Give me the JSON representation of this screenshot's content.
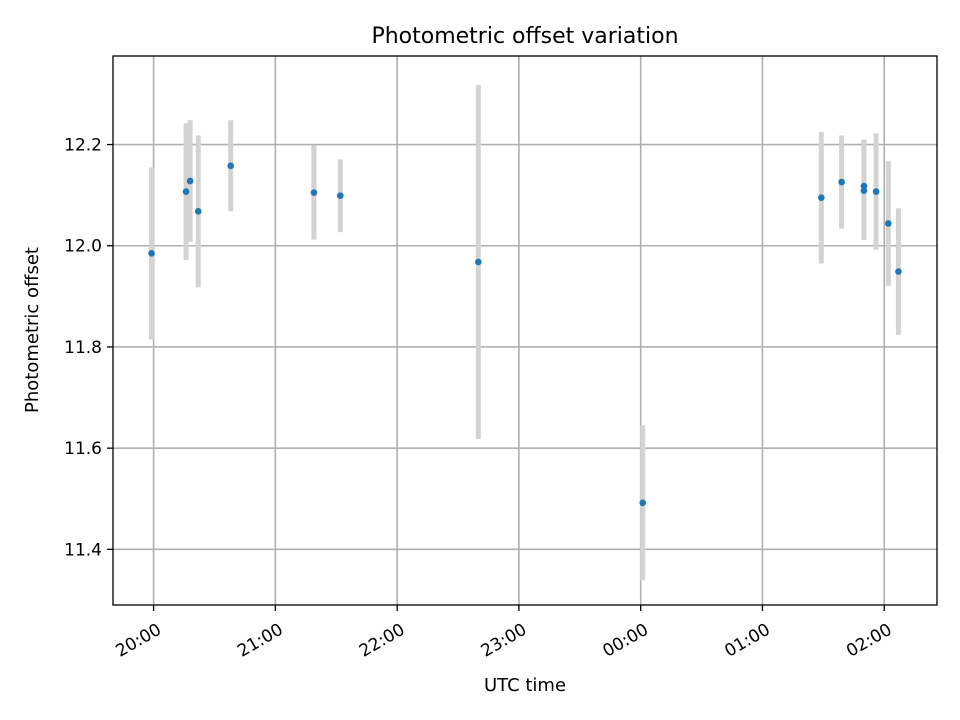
{
  "chart_data": {
    "type": "scatter",
    "title": "Photometric offset variation",
    "xlabel": "UTC time",
    "ylabel": "Photometric offset",
    "x_unit": "UTC time (hours, continuing past midnight)",
    "xlim": [
      "19:40",
      "02:26"
    ],
    "ylim": [
      11.29,
      12.375
    ],
    "x_ticks": [
      "20:00",
      "21:00",
      "22:00",
      "23:00",
      "00:00",
      "01:00",
      "02:00"
    ],
    "y_ticks": [
      "11.4",
      "11.6",
      "11.8",
      "12.0",
      "12.2"
    ],
    "grid": true,
    "colors": {
      "point": "#1f77b4",
      "errorbar": "#d3d3d3",
      "grid": "#b0b0b0"
    },
    "points": [
      {
        "time": "19:59",
        "y": 11.985,
        "err": 0.17
      },
      {
        "time": "20:16",
        "y": 12.107,
        "err": 0.135
      },
      {
        "time": "20:18",
        "y": 12.128,
        "err": 0.12
      },
      {
        "time": "20:22",
        "y": 12.068,
        "err": 0.15
      },
      {
        "time": "20:38",
        "y": 12.158,
        "err": 0.09
      },
      {
        "time": "21:19",
        "y": 12.105,
        "err": 0.093
      },
      {
        "time": "21:32",
        "y": 12.099,
        "err": 0.072
      },
      {
        "time": "22:40",
        "y": 11.968,
        "err": 0.35
      },
      {
        "time": "00:01",
        "y": 11.492,
        "err": 0.153
      },
      {
        "time": "01:29",
        "y": 12.095,
        "err": 0.13
      },
      {
        "time": "01:39",
        "y": 12.126,
        "err": 0.092
      },
      {
        "time": "01:50",
        "y": 12.109,
        "err": 0.098
      },
      {
        "time": "01:50",
        "y": 12.118,
        "err": 0.092
      },
      {
        "time": "01:56",
        "y": 12.107,
        "err": 0.115
      },
      {
        "time": "02:02",
        "y": 12.044,
        "err": 0.123
      },
      {
        "time": "02:07",
        "y": 11.949,
        "err": 0.125
      }
    ]
  }
}
